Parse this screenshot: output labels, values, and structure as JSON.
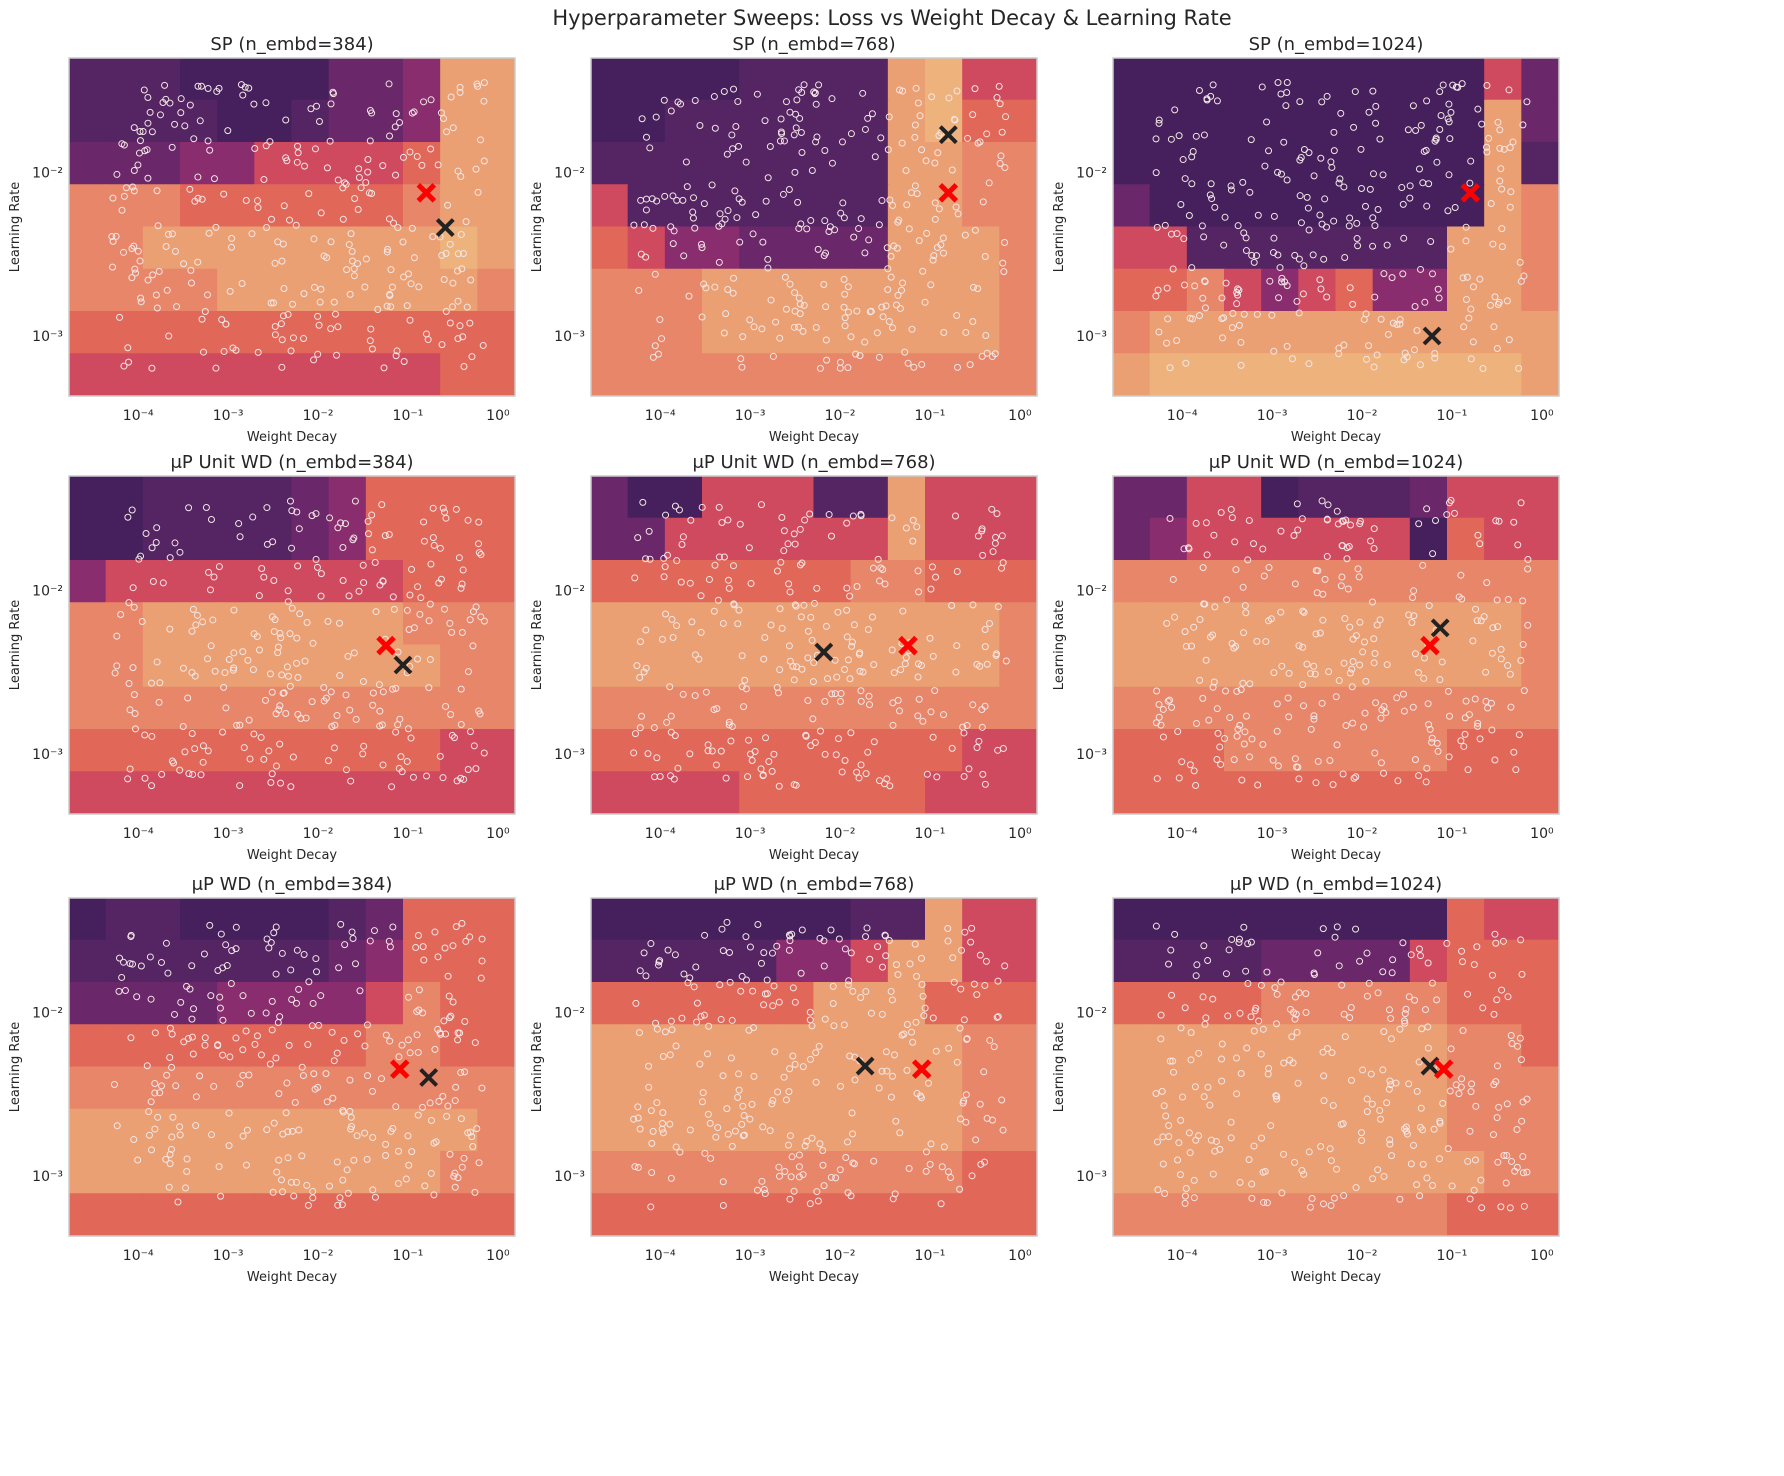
{
  "chart_data": {
    "type": "heatmap",
    "title": "Hyperparameter Sweeps: Loss vs Weight Decay & Learning Rate",
    "xlabel": "Weight Decay",
    "ylabel": "Learning Rate",
    "xscale": "log",
    "yscale": "log",
    "xlim": [
      1.7e-05,
      1.55
    ],
    "ylim": [
      0.00043,
      0.05
    ],
    "xticks": [
      0.0001,
      0.001,
      0.01,
      0.1,
      1
    ],
    "xtick_labels": [
      "10⁻⁴",
      "10⁻³",
      "10⁻²",
      "10⁻¹",
      "10⁰"
    ],
    "yticks": [
      0.001,
      0.01
    ],
    "ytick_labels": [
      "10⁻³",
      "10⁻²"
    ],
    "grid": false,
    "colormap_levels_dark_to_light": [
      "#45205c",
      "#542463",
      "#6a276a",
      "#8a2d6f",
      "#d04a5f",
      "#e16758",
      "#e8866a",
      "#eba073",
      "#eeb27c"
    ],
    "samples": {
      "count_per_panel": 300,
      "log10_wd_range": [
        -4.3,
        -0.15
      ],
      "log10_lr_range": [
        -3.2,
        -1.45
      ]
    },
    "marker_colors": {
      "red": "#ff0000",
      "black": "#222222"
    },
    "panels": [
      {
        "title": "SP (n_embd=384)",
        "red_marker": {
          "wd": 0.16,
          "lr": 0.0075
        },
        "black_marker": {
          "wd": 0.26,
          "lr": 0.0046
        },
        "loss_level_grid": [
          "111000022377",
          "111100122377",
          "222334444577",
          "666555555677",
          "667777777787",
          "666677777776",
          "555555555555",
          "444444444455"
        ]
      },
      {
        "title": "SP (n_embd=768)",
        "red_marker": {
          "wd": 0.16,
          "lr": 0.0075
        },
        "black_marker": {
          "wd": 0.16,
          "lr": 0.017
        },
        "loss_level_grid": [
          "000011117844",
          "001111117855",
          "111111117766",
          "411111117766",
          "543322227776",
          "666777777776",
          "666777777776",
          "666666666666"
        ]
      },
      {
        "title": "SP (n_embd=1024)",
        "red_marker": {
          "wd": 0.16,
          "lr": 0.0075
        },
        "black_marker": {
          "wd": 0.06,
          "lr": 0.001
        },
        "loss_level_grid": [
          "000000000042",
          "000000000072",
          "000000000071",
          "200000000076",
          "441111111776",
          "556434533776",
          "677777777777",
          "788888888887"
        ]
      },
      {
        "title": "μP Unit WD (n_embd=384)",
        "red_marker": {
          "wd": 0.057,
          "lr": 0.0046
        },
        "black_marker": {
          "wd": 0.088,
          "lr": 0.0035
        },
        "loss_level_grid": [
          "001111235555",
          "001111235555",
          "344444444555",
          "667777777666",
          "667777777766",
          "666666666666",
          "555555555544",
          "444444444444"
        ]
      },
      {
        "title": "μP Unit WD (n_embd=768)",
        "red_marker": {
          "wd": 0.057,
          "lr": 0.0046
        },
        "black_marker": {
          "wd": 0.0066,
          "lr": 0.0042
        },
        "loss_level_grid": [
          "200444117444",
          "224444447444",
          "555555566555",
          "777777777776",
          "777777777776",
          "666666666666",
          "555555555544",
          "444455555444"
        ]
      },
      {
        "title": "μP Unit WD (n_embd=1024)",
        "red_marker": {
          "wd": 0.057,
          "lr": 0.0046
        },
        "black_marker": {
          "wd": 0.074,
          "lr": 0.0059
        },
        "loss_level_grid": [
          "224401112444",
          "234444440544",
          "666666666666",
          "777777777776",
          "777777777776",
          "666666666666",
          "555666666555",
          "555555555555"
        ]
      },
      {
        "title": "μP WD (n_embd=384)",
        "red_marker": {
          "wd": 0.081,
          "lr": 0.0045
        },
        "black_marker": {
          "wd": 0.17,
          "lr": 0.004
        },
        "loss_level_grid": [
          "011000012555",
          "111111123555",
          "222233334655",
          "555555556655",
          "666666666666",
          "777777777776",
          "777777777766",
          "555555555555"
        ]
      },
      {
        "title": "μP WD (n_embd=768)",
        "red_marker": {
          "wd": 0.081,
          "lr": 0.0045
        },
        "black_marker": {
          "wd": 0.019,
          "lr": 0.0047
        },
        "loss_level_grid": [
          "000000011744",
          "111113347744",
          "555555777555",
          "777777777766",
          "777777777766",
          "777777777766",
          "666666666655",
          "555555555555"
        ]
      },
      {
        "title": "μP WD (n_embd=1024)",
        "red_marker": {
          "wd": 0.081,
          "lr": 0.0045
        },
        "black_marker": {
          "wd": 0.057,
          "lr": 0.0047
        },
        "loss_level_grid": [
          "000000000544",
          "111122224555",
          "555566666555",
          "777777777665",
          "777777777666",
          "777777777666",
          "777777777766",
          "666666666555"
        ]
      }
    ]
  }
}
